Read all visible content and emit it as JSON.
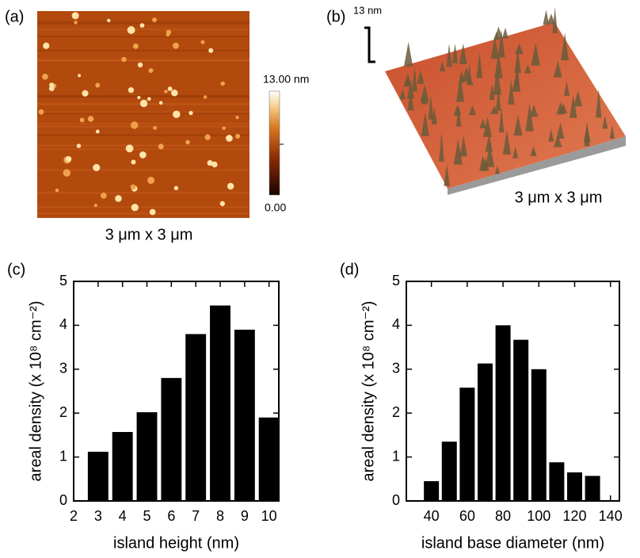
{
  "figure_a": {
    "label": "(a)",
    "colorbar_max": "13.00 nm",
    "colorbar_min": "0.00",
    "caption": "3 μm x 3 μm"
  },
  "figure_b": {
    "label": "(b)",
    "scale": "13 nm",
    "caption": "3 μm x 3 μm"
  },
  "chart_data": [
    {
      "type": "bar",
      "label": "(c)",
      "xlabel": "island height (nm)",
      "ylabel": "areal density (x 10⁸ cm⁻²)",
      "x": [
        3,
        4,
        5,
        6,
        7,
        8,
        9,
        10
      ],
      "values": [
        1.12,
        1.57,
        2.02,
        2.8,
        3.8,
        4.45,
        3.9,
        1.9
      ],
      "color": "#000000",
      "xlim": [
        2,
        10.4
      ],
      "xticks": [
        2,
        3,
        4,
        5,
        6,
        7,
        8,
        9,
        10
      ],
      "ylim": [
        0,
        5
      ],
      "yticks": [
        0,
        1,
        2,
        3,
        4,
        5
      ]
    },
    {
      "type": "bar",
      "label": "(d)",
      "xlabel": "island base diameter (nm)",
      "ylabel": "areal density (x 10⁸ cm⁻²)",
      "x": [
        40,
        50,
        60,
        70,
        80,
        90,
        100,
        110,
        120,
        130
      ],
      "values": [
        0.45,
        1.35,
        2.58,
        3.13,
        4.0,
        3.67,
        3.0,
        0.88,
        0.65,
        0.57
      ],
      "color": "#000000",
      "xlim": [
        26,
        145
      ],
      "xticks": [
        40,
        60,
        80,
        100,
        120,
        140
      ],
      "ylim": [
        0,
        5
      ],
      "yticks": [
        0,
        1,
        2,
        3,
        4,
        5
      ]
    }
  ]
}
